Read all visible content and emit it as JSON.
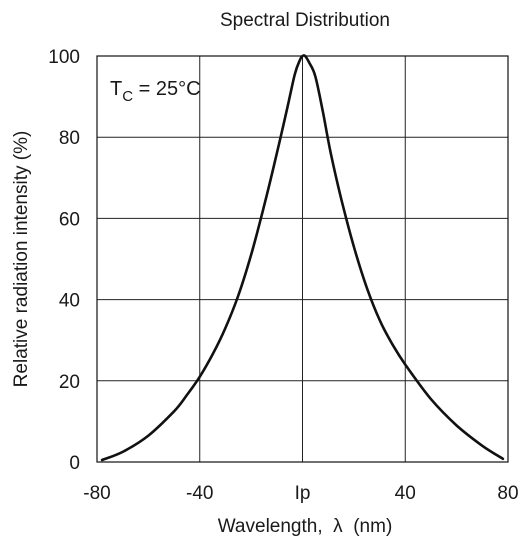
{
  "chart_data": {
    "type": "line",
    "title": "Spectral Distribution",
    "xlabel": "Wavelength,  λ  (nm)",
    "ylabel": "Relative radiation intensity (%)",
    "annotation": {
      "main": "T",
      "sub": "C",
      "rest": " = 25°C"
    },
    "xlim": [
      -80,
      80
    ],
    "ylim": [
      0,
      100
    ],
    "x_ticks": [
      {
        "value": -80,
        "label": "-80"
      },
      {
        "value": -40,
        "label": "-40"
      },
      {
        "value": 0,
        "label": "Ip"
      },
      {
        "value": 40,
        "label": "40"
      },
      {
        "value": 80,
        "label": "80"
      }
    ],
    "y_ticks": [
      {
        "value": 0,
        "label": "0"
      },
      {
        "value": 20,
        "label": "20"
      },
      {
        "value": 40,
        "label": "40"
      },
      {
        "value": 60,
        "label": "60"
      },
      {
        "value": 80,
        "label": "80"
      },
      {
        "value": 100,
        "label": "100"
      }
    ],
    "grid": true,
    "series": [
      {
        "color": "#111111",
        "points": [
          [
            -78,
            0.5
          ],
          [
            -70,
            2.5
          ],
          [
            -60,
            6.5
          ],
          [
            -50,
            12.5
          ],
          [
            -45,
            16.5
          ],
          [
            -40,
            21
          ],
          [
            -35,
            26.5
          ],
          [
            -30,
            33
          ],
          [
            -25,
            41
          ],
          [
            -20,
            51
          ],
          [
            -15,
            63
          ],
          [
            -10,
            76
          ],
          [
            -6,
            87
          ],
          [
            -3,
            95.5
          ],
          [
            -1,
            99
          ],
          [
            0,
            100
          ],
          [
            1,
            100
          ],
          [
            2.5,
            98.5
          ],
          [
            5,
            95
          ],
          [
            8,
            86
          ],
          [
            11,
            76
          ],
          [
            15,
            65
          ],
          [
            20,
            53
          ],
          [
            25,
            43
          ],
          [
            30,
            35
          ],
          [
            35,
            29
          ],
          [
            40,
            24
          ],
          [
            50,
            15.5
          ],
          [
            60,
            9
          ],
          [
            70,
            4
          ],
          [
            78,
            0.8
          ]
        ]
      }
    ]
  }
}
